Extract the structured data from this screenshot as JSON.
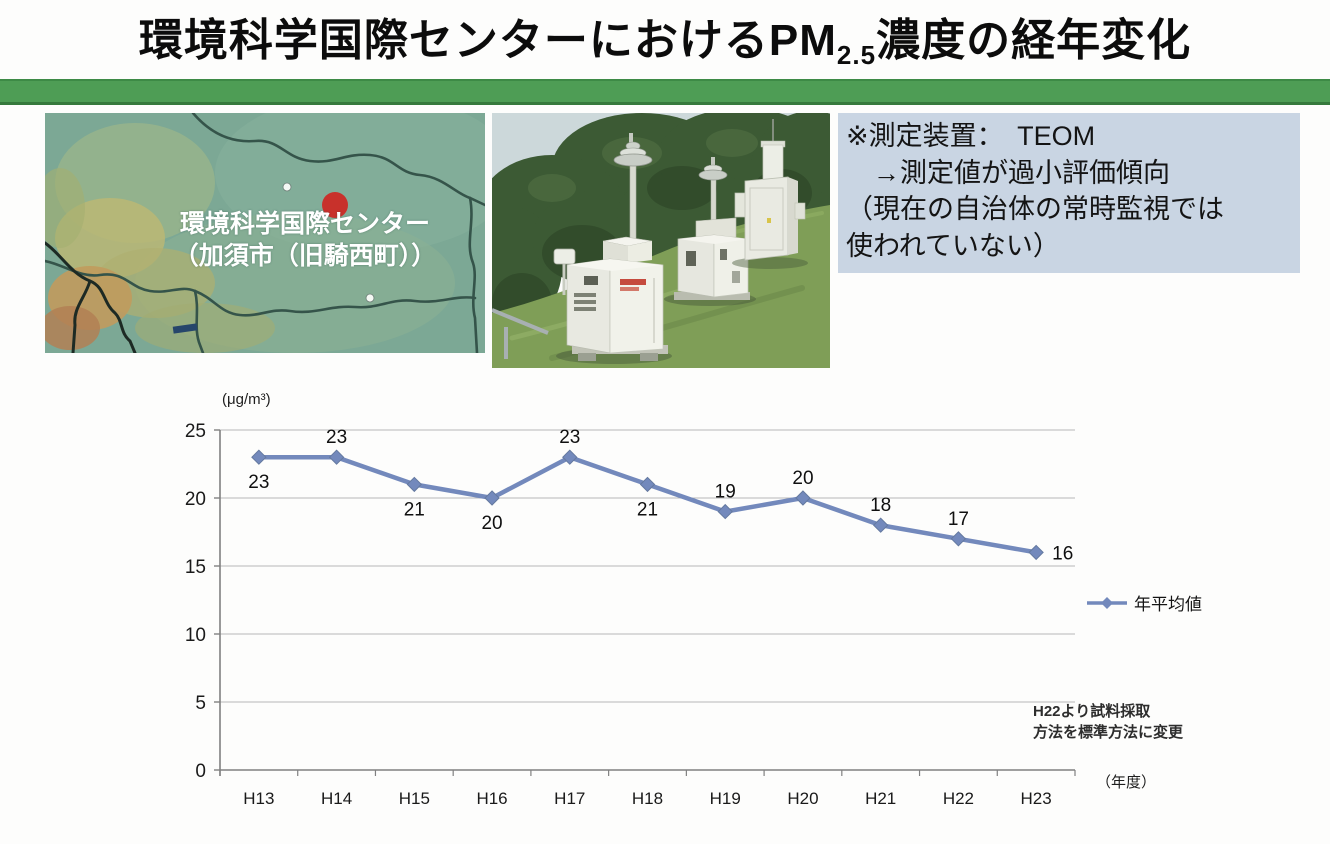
{
  "title": {
    "pre": "環境科学国際センターにおけるPM",
    "sub": "2.5",
    "post": "濃度の経年変化"
  },
  "colors": {
    "accent_green": "#4e9d55",
    "note_bg": "#c9d5e3",
    "map_marker_red": "#c8312b",
    "line_blue": "#7389bc"
  },
  "map": {
    "label_line1": "環境科学国際センター",
    "label_line2": "（加須市（旧騎西町））"
  },
  "note_box": {
    "text": "※測定装置：　TEOM\n　→測定値が過小評価傾向\n（現在の自治体の常時監視では\n使われていない）"
  },
  "chart_data": {
    "type": "line",
    "categories": [
      "H13",
      "H14",
      "H15",
      "H16",
      "H17",
      "H18",
      "H19",
      "H20",
      "H21",
      "H22",
      "H23"
    ],
    "series": [
      {
        "name": "年平均値",
        "values": [
          23,
          23,
          21,
          20,
          23,
          21,
          19,
          20,
          18,
          17,
          16
        ]
      }
    ],
    "ylabel": "(μg/m³)",
    "xlabel": "（年度）",
    "ylim": [
      0,
      25
    ],
    "ytick_step": 5,
    "grid": true,
    "legend_position": "right-middle",
    "annotation": "H22より試料採取\n方法を標準方法に変更",
    "line_color": "#7389bc",
    "label_placement": [
      "below",
      "above",
      "below",
      "below",
      "above",
      "below",
      "above",
      "above",
      "above",
      "above",
      "right"
    ]
  }
}
